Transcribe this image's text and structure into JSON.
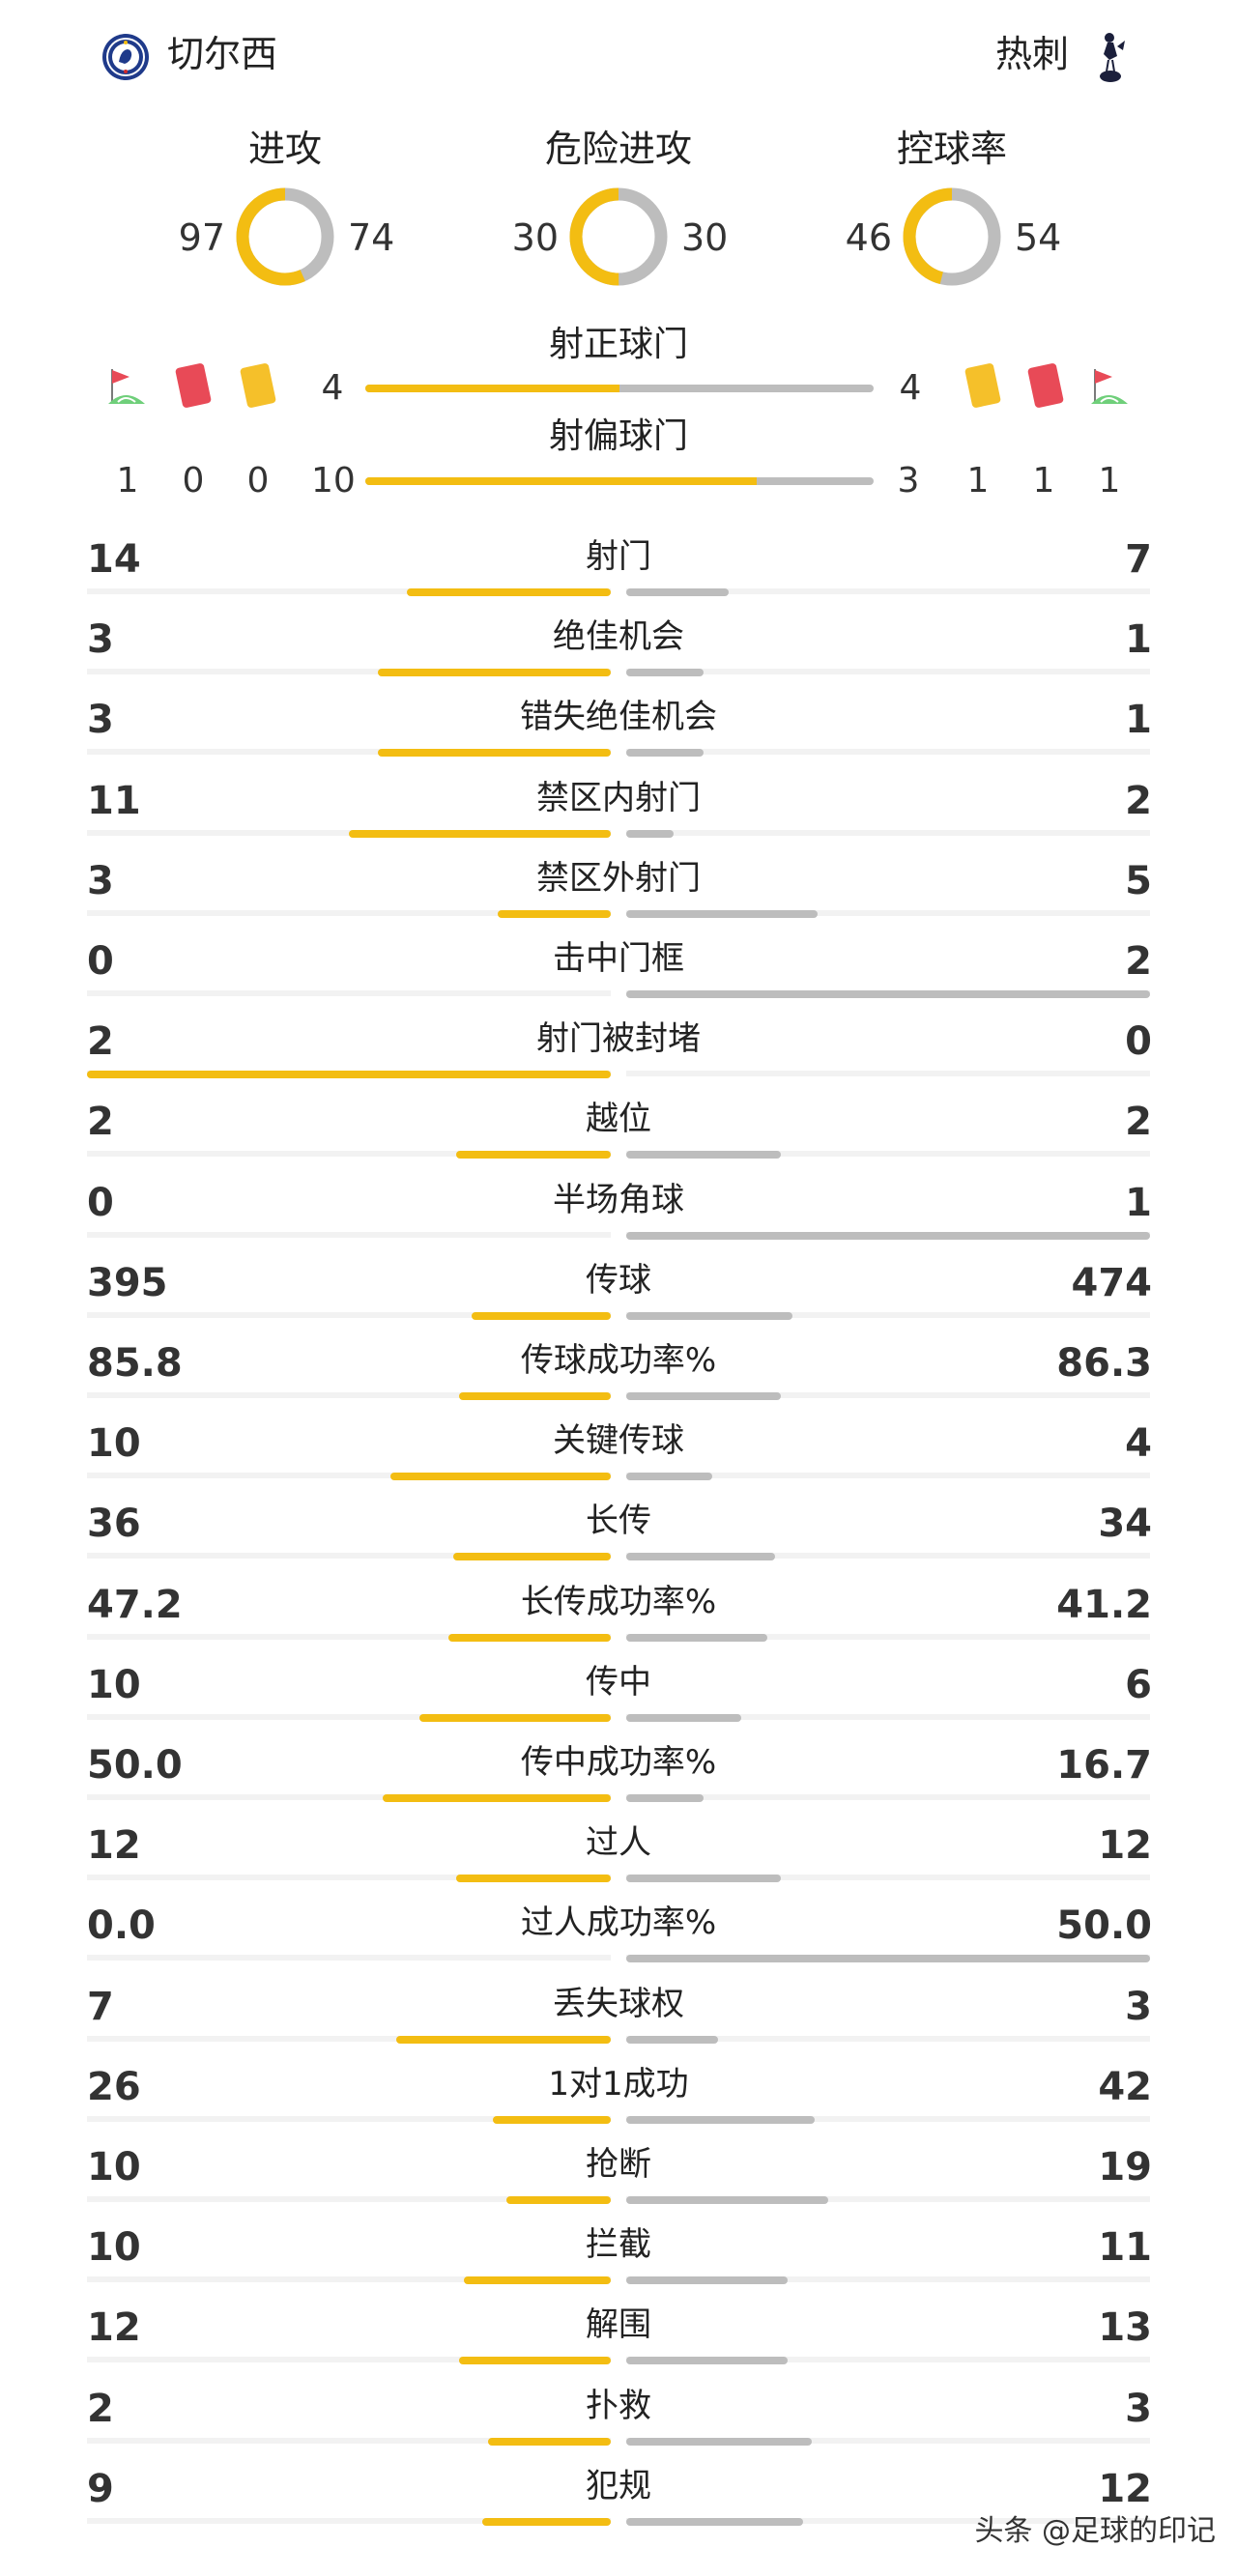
{
  "header": {
    "home_team": "切尔西",
    "away_team": "热刺",
    "home_logo_icon": "chelsea-crest-icon",
    "away_logo_icon": "tottenham-cockerel-icon"
  },
  "colors": {
    "home": "#f3bd12",
    "away": "#bdbdbd",
    "red_card": "#e84a57",
    "yellow_card": "#f5c02a"
  },
  "summary": [
    {
      "title": "进攻",
      "home": "97",
      "away": "74",
      "home_value": 97,
      "away_value": 74
    },
    {
      "title": "危险进攻",
      "home": "30",
      "away": "30",
      "home_value": 30,
      "away_value": 30
    },
    {
      "title": "控球率",
      "home": "46",
      "away": "54",
      "home_value": 46,
      "away_value": 54
    }
  ],
  "shots_on": {
    "title": "射正球门",
    "home": "4",
    "away": "4",
    "home_fraction": 0.5
  },
  "shots_off": {
    "title": "射偏球门",
    "home": "10",
    "away": "3",
    "home_fraction": 0.77
  },
  "discipline": {
    "home_corners": "1",
    "home_red": "0",
    "home_yellow": "0",
    "away_yellow": "1",
    "away_red": "1",
    "away_corners": "1",
    "icons": [
      "corner-flag-icon",
      "red-card-icon",
      "yellow-card-icon"
    ]
  },
  "stats": [
    {
      "label": "射门",
      "home": "14",
      "away": "7",
      "home_fraction": 0.39,
      "away_fraction": 0.195
    },
    {
      "label": "绝佳机会",
      "home": "3",
      "away": "1",
      "home_fraction": 0.445,
      "away_fraction": 0.148
    },
    {
      "label": "错失绝佳机会",
      "home": "3",
      "away": "1",
      "home_fraction": 0.445,
      "away_fraction": 0.148
    },
    {
      "label": "禁区内射门",
      "home": "11",
      "away": "2",
      "home_fraction": 0.5,
      "away_fraction": 0.09
    },
    {
      "label": "禁区外射门",
      "home": "3",
      "away": "5",
      "home_fraction": 0.215,
      "away_fraction": 0.365
    },
    {
      "label": "击中门框",
      "home": "0",
      "away": "2",
      "home_fraction": 0,
      "away_fraction": 1
    },
    {
      "label": "射门被封堵",
      "home": "2",
      "away": "0",
      "home_fraction": 1,
      "away_fraction": 0
    },
    {
      "label": "越位",
      "home": "2",
      "away": "2",
      "home_fraction": 0.295,
      "away_fraction": 0.295
    },
    {
      "label": "半场角球",
      "home": "0",
      "away": "1",
      "home_fraction": 0,
      "away_fraction": 1
    },
    {
      "label": "传球",
      "home": "395",
      "away": "474",
      "home_fraction": 0.265,
      "away_fraction": 0.318
    },
    {
      "label": "传球成功率%",
      "home": "85.8",
      "away": "86.3",
      "home_fraction": 0.29,
      "away_fraction": 0.295
    },
    {
      "label": "关键传球",
      "home": "10",
      "away": "4",
      "home_fraction": 0.42,
      "away_fraction": 0.165
    },
    {
      "label": "长传",
      "home": "36",
      "away": "34",
      "home_fraction": 0.3,
      "away_fraction": 0.285
    },
    {
      "label": "长传成功率%",
      "home": "47.2",
      "away": "41.2",
      "home_fraction": 0.31,
      "away_fraction": 0.27
    },
    {
      "label": "传中",
      "home": "10",
      "away": "6",
      "home_fraction": 0.365,
      "away_fraction": 0.22
    },
    {
      "label": "传中成功率%",
      "home": "50.0",
      "away": "16.7",
      "home_fraction": 0.435,
      "away_fraction": 0.148
    },
    {
      "label": "过人",
      "home": "12",
      "away": "12",
      "home_fraction": 0.295,
      "away_fraction": 0.295
    },
    {
      "label": "过人成功率%",
      "home": "0.0",
      "away": "50.0",
      "home_fraction": 0,
      "away_fraction": 1
    },
    {
      "label": "丢失球权",
      "home": "7",
      "away": "3",
      "home_fraction": 0.41,
      "away_fraction": 0.175
    },
    {
      "label": "1对1成功",
      "home": "26",
      "away": "42",
      "home_fraction": 0.225,
      "away_fraction": 0.36
    },
    {
      "label": "抢断",
      "home": "10",
      "away": "19",
      "home_fraction": 0.2,
      "away_fraction": 0.385
    },
    {
      "label": "拦截",
      "home": "10",
      "away": "11",
      "home_fraction": 0.28,
      "away_fraction": 0.308
    },
    {
      "label": "解围",
      "home": "12",
      "away": "13",
      "home_fraction": 0.29,
      "away_fraction": 0.308
    },
    {
      "label": "扑救",
      "home": "2",
      "away": "3",
      "home_fraction": 0.235,
      "away_fraction": 0.355
    },
    {
      "label": "犯规",
      "home": "9",
      "away": "12",
      "home_fraction": 0.245,
      "away_fraction": 0.338
    }
  ],
  "watermark": "头条 @足球的印记"
}
